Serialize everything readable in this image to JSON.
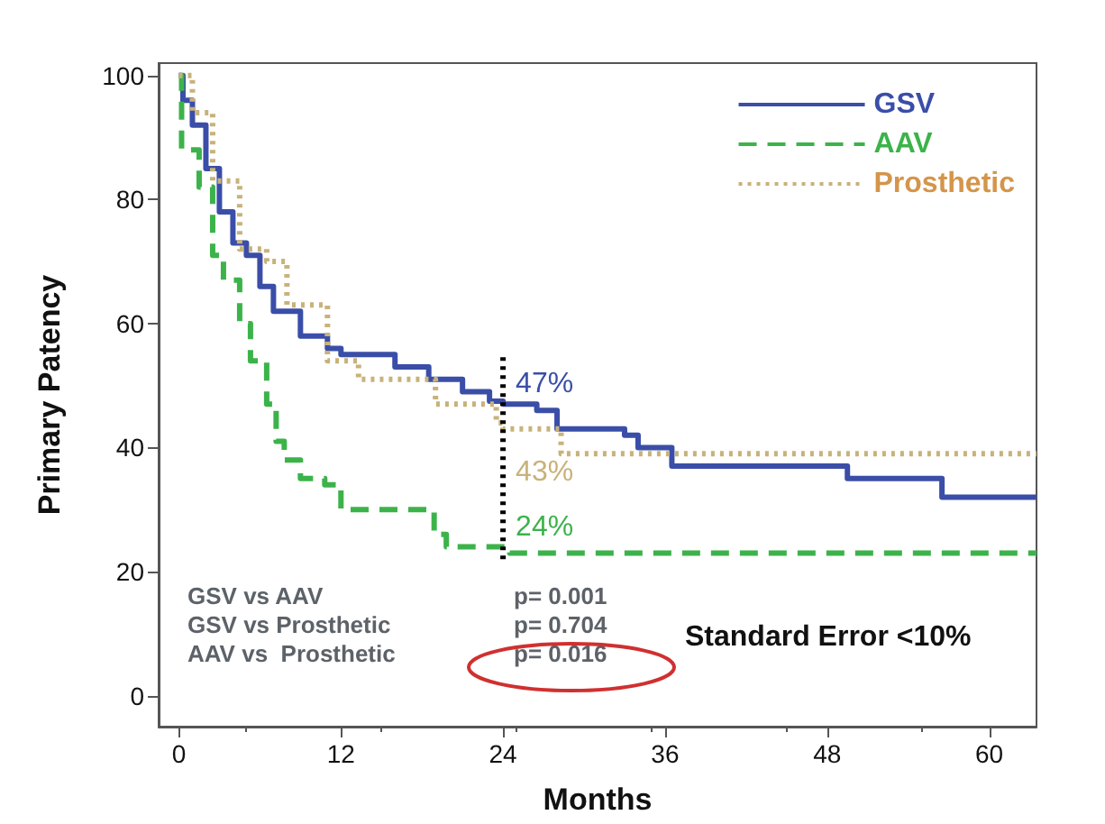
{
  "chart_data": {
    "type": "step",
    "xlabel": "Months",
    "ylabel": "Primary Patency",
    "xlim": [
      -1.5,
      63.5
    ],
    "ylim": [
      -5,
      102
    ],
    "xticks": [
      0,
      12,
      24,
      36,
      48,
      60
    ],
    "yticks": [
      0,
      20,
      40,
      60,
      80,
      100
    ],
    "grid": false,
    "legend": "top right",
    "series": [
      {
        "name": "GSV",
        "color": "#3a4ea8",
        "line_style": "solid",
        "x": [
          0,
          0.3,
          1,
          2,
          3,
          4,
          5,
          6,
          7,
          9,
          11,
          12,
          16,
          18.5,
          21,
          23,
          24,
          26.5,
          28,
          33,
          34,
          36.5,
          49.5,
          56.5,
          63.5
        ],
        "values": [
          100,
          96,
          92,
          85,
          78,
          73,
          71,
          66,
          62,
          58,
          56,
          55,
          53,
          51,
          49,
          47.5,
          47,
          46,
          43,
          42,
          40,
          37,
          35,
          32,
          32
        ],
        "value_labels": [
          null,
          null,
          null,
          null,
          null,
          null,
          null,
          null,
          null,
          null,
          null,
          null,
          null,
          null,
          null,
          null,
          "47%",
          null,
          null,
          null,
          null,
          null,
          null,
          null,
          null
        ]
      },
      {
        "name": "AAV",
        "color": "#3cb34a",
        "line_style": "dashed",
        "x": [
          0,
          0.2,
          1.5,
          2.5,
          3.3,
          4.5,
          5.3,
          6.5,
          7.2,
          7.8,
          9,
          10.8,
          12,
          18.9,
          19.8,
          24,
          24.5,
          63.5
        ],
        "values": [
          100,
          88,
          82,
          71,
          67,
          60,
          54,
          47,
          41,
          38,
          35,
          34,
          30,
          26,
          24,
          24,
          23,
          23
        ],
        "value_labels": [
          null,
          null,
          null,
          null,
          null,
          null,
          null,
          null,
          null,
          null,
          null,
          null,
          null,
          null,
          null,
          "24%",
          null,
          null
        ]
      },
      {
        "name": "Prosthetic",
        "color": "#c8b27a",
        "line_style": "dotted",
        "x": [
          0,
          1,
          2.5,
          4.5,
          6.5,
          8,
          11,
          13.3,
          19,
          23.5,
          24,
          28.3,
          63.5
        ],
        "values": [
          100,
          94,
          83,
          72,
          70,
          63,
          54,
          51,
          47,
          44,
          43,
          39,
          39
        ],
        "value_labels": [
          null,
          null,
          null,
          null,
          null,
          null,
          null,
          null,
          null,
          null,
          "43%",
          null,
          null
        ]
      },
      {
        "type": "line",
        "color": "#000000",
        "line_style": "dotted",
        "x": [
          24,
          24
        ],
        "values": [
          22,
          55
        ]
      }
    ],
    "annotations": [
      "GSV vs AAV",
      "p= 0.001",
      "GSV vs Prosthetic",
      "p= 0.704",
      "AAV vs  Prosthetic",
      "p= 0.016",
      "Standard Error <10%"
    ]
  }
}
